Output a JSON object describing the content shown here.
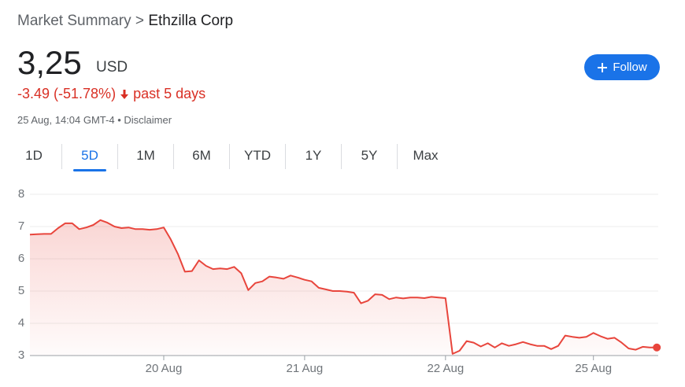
{
  "header": {
    "breadcrumb": [
      "Market Summary",
      ">",
      "Ethzilla Corp"
    ],
    "price": "3,25",
    "currency": "USD",
    "change": "-3.49 (-51.78%)",
    "period": "past 5 days",
    "timestamp": "25 Aug, 14:04 GMT-4",
    "separator": "•",
    "disclaimer": "Disclaimer",
    "follow": "Follow"
  },
  "tabs": [
    "1D",
    "5D",
    "1M",
    "6M",
    "YTD",
    "1Y",
    "5Y",
    "Max"
  ],
  "chart_data": {
    "type": "line",
    "color": "#e8453c",
    "area": true,
    "grid": true,
    "values": [
      6.75,
      6.76,
      6.77,
      6.77,
      6.95,
      7.1,
      7.1,
      6.92,
      6.97,
      7.05,
      7.2,
      7.12,
      7.0,
      6.95,
      6.97,
      6.92,
      6.92,
      6.9,
      6.92,
      6.97,
      6.6,
      6.15,
      5.6,
      5.62,
      5.95,
      5.78,
      5.68,
      5.7,
      5.68,
      5.75,
      5.55,
      5.03,
      5.25,
      5.3,
      5.45,
      5.42,
      5.38,
      5.48,
      5.42,
      5.35,
      5.3,
      5.1,
      5.05,
      5.0,
      5.0,
      4.98,
      4.95,
      4.62,
      4.7,
      4.9,
      4.88,
      4.75,
      4.8,
      4.77,
      4.8,
      4.8,
      4.78,
      4.82,
      4.8,
      4.78,
      3.05,
      3.15,
      3.45,
      3.4,
      3.28,
      3.38,
      3.25,
      3.38,
      3.3,
      3.35,
      3.42,
      3.35,
      3.3,
      3.3,
      3.2,
      3.3,
      3.62,
      3.58,
      3.55,
      3.58,
      3.7,
      3.6,
      3.52,
      3.55,
      3.4,
      3.22,
      3.18,
      3.27,
      3.25,
      3.25
    ],
    "xlim": [
      0,
      89.2
    ],
    "xticks": [
      {
        "value": 19,
        "label": "20 Aug"
      },
      {
        "value": 39,
        "label": "21 Aug"
      },
      {
        "value": 59,
        "label": "22 Aug"
      },
      {
        "value": 80,
        "label": "25 Aug"
      }
    ],
    "ylim": [
      3,
      8
    ],
    "yticks": [
      3,
      4,
      5,
      6,
      7,
      8
    ]
  }
}
